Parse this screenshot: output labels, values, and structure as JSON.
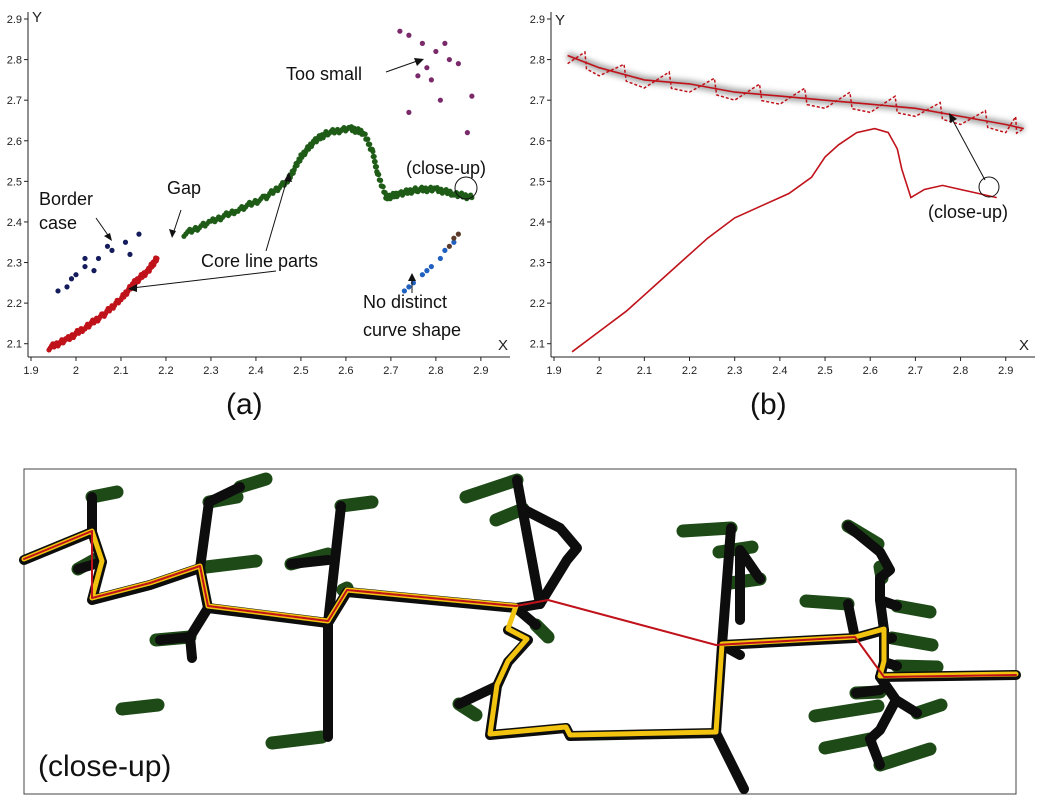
{
  "panels": {
    "a": {
      "label": "(a)",
      "x_tick_labels": [
        "1.9",
        "2",
        "2.1",
        "2.2",
        "2.3",
        "2.4",
        "2.5",
        "2.6",
        "2.7",
        "2.8",
        "2.9"
      ],
      "y_tick_labels": [
        "2.1",
        "2.2",
        "2.3",
        "2.4",
        "2.5",
        "2.6",
        "2.7",
        "2.8",
        "2.9"
      ],
      "x_name": "X",
      "y_name": "Y",
      "annotations": {
        "too_small": "Too small",
        "close_up": "(close-up)",
        "border": "Border",
        "case": "case",
        "gap": "Gap",
        "core_line_parts": "Core line parts",
        "no_distinct": "No distinct",
        "curve_shape": "curve shape"
      }
    },
    "b": {
      "label": "(b)",
      "x_tick_labels": [
        "1.9",
        "2",
        "2.1",
        "2.2",
        "2.3",
        "2.4",
        "2.5",
        "2.6",
        "2.7",
        "2.8",
        "2.9"
      ],
      "y_tick_labels": [
        "2.1",
        "2.2",
        "2.3",
        "2.4",
        "2.5",
        "2.6",
        "2.7",
        "2.8",
        "2.9"
      ],
      "x_name": "X",
      "y_name": "Y",
      "annotations": {
        "close_up": "(close-up)"
      }
    },
    "c": {
      "label": "(close-up)"
    }
  },
  "colors": {
    "red": "#c0121a",
    "dark_red": "#d01b1b",
    "green": "#1e5c17",
    "navy": "#141c5c",
    "blue": "#2060c0",
    "black": "#111111",
    "yellow": "#f2c40f"
  },
  "chart_data": [
    {
      "type": "scatter",
      "panel": "a",
      "xlim": [
        1.9,
        2.95
      ],
      "ylim": [
        2.05,
        2.9
      ],
      "series": [
        {
          "color": "#1e5c17",
          "points": [
            [
              2.24,
              2.37
            ],
            [
              2.3,
              2.4
            ],
            [
              2.36,
              2.43
            ],
            [
              2.42,
              2.46
            ],
            [
              2.47,
              2.5
            ],
            [
              2.5,
              2.56
            ],
            [
              2.53,
              2.6
            ],
            [
              2.56,
              2.62
            ],
            [
              2.61,
              2.63
            ],
            [
              2.64,
              2.62
            ],
            [
              2.66,
              2.57
            ],
            [
              2.67,
              2.52
            ],
            [
              2.69,
              2.46
            ],
            [
              2.72,
              2.47
            ],
            [
              2.76,
              2.48
            ],
            [
              2.8,
              2.48
            ],
            [
              2.84,
              2.47
            ],
            [
              2.88,
              2.46
            ]
          ]
        },
        {
          "color": "#c0121a",
          "points": [
            [
              1.94,
              2.09
            ],
            [
              1.98,
              2.11
            ],
            [
              2.02,
              2.14
            ],
            [
              2.06,
              2.17
            ],
            [
              2.1,
              2.21
            ],
            [
              2.13,
              2.25
            ],
            [
              2.16,
              2.28
            ],
            [
              2.18,
              2.31
            ]
          ]
        },
        {
          "color": "#141c5c",
          "points": [
            [
              1.96,
              2.23
            ],
            [
              1.99,
              2.26
            ],
            [
              2.02,
              2.29
            ],
            [
              2.05,
              2.31
            ],
            [
              2.08,
              2.33
            ],
            [
              2.11,
              2.35
            ],
            [
              2.14,
              2.37
            ],
            [
              2.02,
              2.31
            ],
            [
              2.07,
              2.34
            ],
            [
              1.98,
              2.24
            ],
            [
              2.0,
              2.27
            ],
            [
              2.12,
              2.32
            ],
            [
              2.04,
              2.28
            ]
          ]
        },
        {
          "color": "#2060c0",
          "points": [
            [
              2.73,
              2.23
            ],
            [
              2.75,
              2.25
            ],
            [
              2.77,
              2.27
            ],
            [
              2.79,
              2.29
            ],
            [
              2.81,
              2.31
            ],
            [
              2.82,
              2.33
            ],
            [
              2.84,
              2.35
            ],
            [
              2.74,
              2.24
            ],
            [
              2.78,
              2.28
            ]
          ]
        },
        {
          "color": "#5a3a2a",
          "points": [
            [
              2.83,
              2.34
            ],
            [
              2.84,
              2.36
            ],
            [
              2.85,
              2.37
            ]
          ]
        },
        {
          "color": "#7a2a6a",
          "points": [
            [
              2.76,
              2.76
            ],
            [
              2.78,
              2.78
            ],
            [
              2.8,
              2.82
            ],
            [
              2.82,
              2.84
            ],
            [
              2.83,
              2.8
            ],
            [
              2.85,
              2.79
            ],
            [
              2.77,
              2.84
            ],
            [
              2.79,
              2.75
            ],
            [
              2.81,
              2.7
            ],
            [
              2.87,
              2.62
            ],
            [
              2.88,
              2.71
            ],
            [
              2.74,
              2.67
            ],
            [
              2.74,
              2.86
            ],
            [
              2.72,
              2.87
            ]
          ]
        }
      ]
    },
    {
      "type": "line",
      "panel": "b",
      "xlim": [
        1.9,
        2.95
      ],
      "ylim": [
        2.05,
        2.9
      ],
      "series": [
        {
          "color": "#c0121a",
          "points": [
            [
              1.94,
              2.08
            ],
            [
              2.0,
              2.13
            ],
            [
              2.06,
              2.18
            ],
            [
              2.12,
              2.24
            ],
            [
              2.18,
              2.3
            ],
            [
              2.24,
              2.36
            ],
            [
              2.3,
              2.41
            ],
            [
              2.36,
              2.44
            ],
            [
              2.42,
              2.47
            ],
            [
              2.47,
              2.51
            ],
            [
              2.5,
              2.56
            ],
            [
              2.53,
              2.59
            ],
            [
              2.57,
              2.62
            ],
            [
              2.61,
              2.63
            ],
            [
              2.64,
              2.62
            ],
            [
              2.66,
              2.58
            ],
            [
              2.67,
              2.53
            ],
            [
              2.69,
              2.46
            ],
            [
              2.72,
              2.48
            ],
            [
              2.76,
              2.49
            ],
            [
              2.8,
              2.48
            ],
            [
              2.84,
              2.47
            ],
            [
              2.88,
              2.46
            ]
          ]
        },
        {
          "color": "#c0121a",
          "points": [
            [
              1.93,
              2.81
            ],
            [
              2.0,
              2.78
            ],
            [
              2.1,
              2.75
            ],
            [
              2.2,
              2.74
            ],
            [
              2.3,
              2.72
            ],
            [
              2.4,
              2.71
            ],
            [
              2.5,
              2.7
            ],
            [
              2.6,
              2.69
            ],
            [
              2.7,
              2.68
            ],
            [
              2.8,
              2.66
            ],
            [
              2.9,
              2.64
            ],
            [
              2.94,
              2.63
            ]
          ]
        }
      ]
    }
  ]
}
